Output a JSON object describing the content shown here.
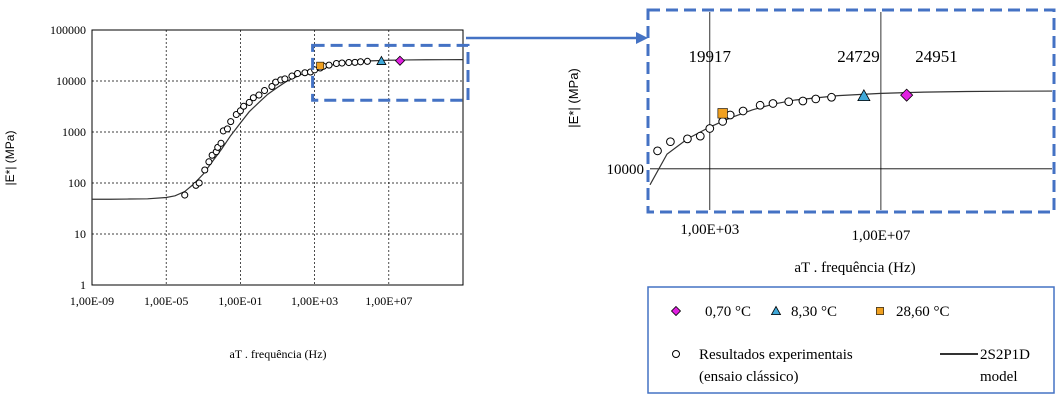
{
  "chart_data": [
    {
      "type": "scatter",
      "title": "",
      "xlabel": "aT . frequência (Hz)",
      "ylabel": "|E*| (MPa)",
      "x_scale": "log",
      "y_scale": "log",
      "xlim": [
        1e-09,
        100000000000.0
      ],
      "ylim": [
        1,
        100000
      ],
      "grid": "on",
      "x_ticks": [
        {
          "value": 1e-09,
          "label": "1,00E-09"
        },
        {
          "value": 1e-05,
          "label": "1,00E-05"
        },
        {
          "value": 0.1,
          "label": "1,00E-01"
        },
        {
          "value": 1000.0,
          "label": "1,00E+03"
        },
        {
          "value": 10000000.0,
          "label": "1,00E+07"
        }
      ],
      "y_ticks": [
        {
          "value": 1,
          "label": "1"
        },
        {
          "value": 10,
          "label": "10"
        },
        {
          "value": 100,
          "label": "100"
        },
        {
          "value": 1000,
          "label": "1000"
        },
        {
          "value": 10000,
          "label": "10000"
        },
        {
          "value": 100000,
          "label": "100000"
        }
      ],
      "series": [
        {
          "name": "Resultados experimentais (ensaio clássico)",
          "marker": "open-circle",
          "x": [
            0.0001,
            0.0004,
            0.0006,
            0.0012,
            0.002,
            0.003,
            0.005,
            0.006,
            0.009,
            0.012,
            0.02,
            0.03,
            0.06,
            0.1,
            0.15,
            0.3,
            0.5,
            1,
            2,
            5,
            8,
            15,
            25,
            60,
            120,
            300,
            600,
            1000,
            2000,
            3000,
            6000,
            15000,
            30000,
            70000,
            150000,
            300000,
            700000
          ],
          "y": [
            58,
            90,
            100,
            180,
            260,
            350,
            410,
            500,
            600,
            1050,
            1150,
            1600,
            2200,
            2600,
            3200,
            3800,
            4700,
            5300,
            6500,
            7800,
            9500,
            10500,
            11000,
            12500,
            14000,
            14500,
            15000,
            16500,
            18000,
            19500,
            20500,
            22000,
            22500,
            23000,
            23200,
            23800,
            24300
          ]
        },
        {
          "name": "0,70 °C",
          "marker": "diamond",
          "color": "#e020e0",
          "x": [
            40000000
          ],
          "y": [
            24951
          ]
        },
        {
          "name": "8,30 °C",
          "marker": "triangle",
          "color": "#40a8d8",
          "x": [
            4000000
          ],
          "y": [
            24729
          ]
        },
        {
          "name": "28,60 °C",
          "marker": "square",
          "color": "#f0a020",
          "x": [
            2000
          ],
          "y": [
            19917
          ]
        },
        {
          "name": "2S2P1D model",
          "marker": "line",
          "color": "#333333",
          "x": [
            1e-09,
            1e-08,
            1e-07,
            1e-06,
            1e-05,
            3e-05,
            0.0001,
            0.0003,
            0.001,
            0.003,
            0.01,
            0.03,
            0.1,
            0.3,
            1,
            3,
            10,
            30,
            100,
            300,
            1000,
            3000,
            10000,
            30000,
            100000,
            1000000,
            10000000,
            100000000,
            1000000000,
            10000000000,
            100000000000
          ],
          "y": [
            48,
            48,
            48.5,
            49,
            52,
            56,
            68,
            95,
            150,
            260,
            470,
            850,
            1500,
            2500,
            3800,
            5500,
            7500,
            9800,
            12000,
            14500,
            16800,
            18800,
            20800,
            22300,
            23500,
            24800,
            25500,
            25900,
            26100,
            26200,
            26250
          ]
        }
      ],
      "zoom_box": {
        "xlim": [
          1000.0,
          100000000000.0
        ],
        "ylim": [
          4200,
          50000
        ]
      }
    },
    {
      "type": "scatter",
      "title": "",
      "xlabel": "aT . frequência (Hz)",
      "ylabel": "|E*| (MPa)",
      "x_scale": "log",
      "y_scale": "log",
      "xlim": [
        40,
        100000000000.0
      ],
      "ylim": [
        6000,
        70000
      ],
      "x_ticks": [
        {
          "value": 1000.0,
          "label": "1,00E+03"
        },
        {
          "value": 10000000.0,
          "label": "1,00E+07"
        }
      ],
      "y_ticks": [
        {
          "value": 10000,
          "label": "10000"
        }
      ],
      "annotations": [
        {
          "text": "19917",
          "x": 1000,
          "y": 40000
        },
        {
          "text": "24729",
          "x": 3000000,
          "y": 40000
        },
        {
          "text": "24951",
          "x": 200000000,
          "y": 40000
        }
      ]
    }
  ],
  "legend": {
    "items": [
      {
        "symbol": "diamond",
        "color": "#e020e0",
        "label": "0,70 °C"
      },
      {
        "symbol": "triangle",
        "color": "#40a8d8",
        "label": "8,30 °C"
      },
      {
        "symbol": "square",
        "color": "#f0a020",
        "label": "28,60 °C"
      }
    ],
    "experimental_line1": "Resultados experimentais",
    "experimental_line2": "(ensaio clássico)",
    "model_line1": "2S2P1D",
    "model_line2": "model"
  },
  "colors": {
    "frame_blue": "#4472c4",
    "grid": "#000000",
    "curve": "#333333"
  }
}
